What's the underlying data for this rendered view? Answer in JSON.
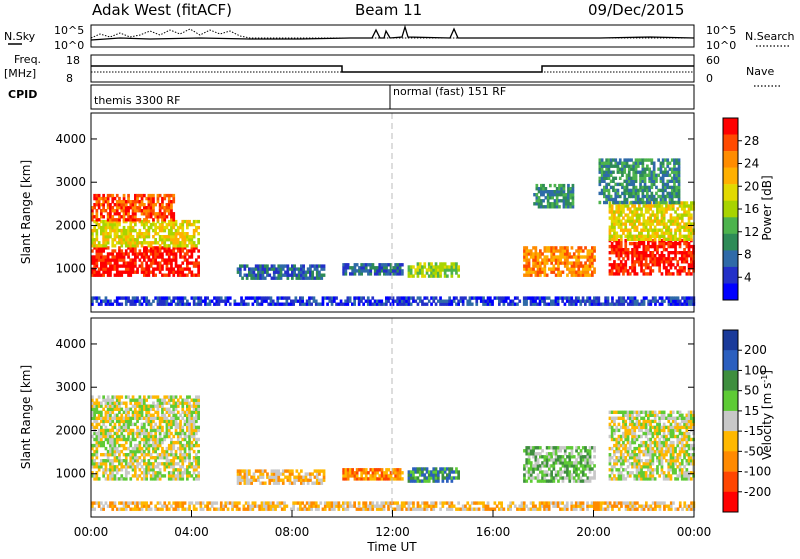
{
  "header": {
    "station": "Adak West (fitACF)",
    "beam": "Beam 11",
    "date": "09/Dec/2015"
  },
  "strip_panels": {
    "nsky": {
      "label": "N.Sky",
      "left_ticks": [
        "10^5",
        "10^0"
      ]
    },
    "nsearch": {
      "label": "N.Search",
      "right_ticks": [
        "10^5",
        "10^0"
      ]
    },
    "freq": {
      "label_line1": "Freq.",
      "label_line2": "[MHz]",
      "left_ticks": [
        "18",
        "8"
      ]
    },
    "nave": {
      "label": "Nave",
      "right_ticks": [
        "60",
        "0"
      ]
    },
    "cpid": {
      "label": "CPID",
      "modes": [
        "themis 3300 RF",
        "normal (fast) 151 RF"
      ]
    }
  },
  "colorbars": {
    "power": {
      "title": "Power [dB]",
      "ticks": [
        "28",
        "24",
        "20",
        "16",
        "12",
        "8",
        "4"
      ],
      "colors": [
        "#ff0000",
        "#ff4a00",
        "#ff8c00",
        "#ffb000",
        "#e2d900",
        "#a8d400",
        "#4db34d",
        "#2e8b57",
        "#2f6aa8",
        "#2330c8",
        "#0000ff"
      ]
    },
    "velocity": {
      "title_main": "Velocity ",
      "title_unit": "[m s",
      "title_sup": "-1",
      "title_end": "]",
      "ticks": [
        "200",
        "100",
        "50",
        "15",
        "-15",
        "-50",
        "-100",
        "-200"
      ],
      "colors": [
        "#1a3a9a",
        "#2b5fbf",
        "#3e8e3e",
        "#5ecb35",
        "#c8c8c8",
        "#ffb800",
        "#ff8a00",
        "#ff4500",
        "#ff0000"
      ]
    }
  },
  "chart_data": [
    {
      "type": "heatmap",
      "name": "power",
      "ylabel": "Slant Range [km]",
      "ylim": [
        0,
        4600
      ],
      "yticks": [
        "4000",
        "3000",
        "2000",
        "1000"
      ],
      "xlim_hours": [
        0,
        24
      ],
      "regions": [
        {
          "t0": 0.0,
          "t1": 4.3,
          "r0": 820,
          "r1": 1500,
          "level": 10
        },
        {
          "t0": 0.0,
          "t1": 4.3,
          "r0": 1500,
          "r1": 2100,
          "level": 6
        },
        {
          "t0": 0.0,
          "t1": 3.3,
          "r0": 2100,
          "r1": 2700,
          "level": 9
        },
        {
          "t0": 5.8,
          "t1": 9.3,
          "r0": 750,
          "r1": 1050,
          "level": 2
        },
        {
          "t0": 10.0,
          "t1": 12.4,
          "r0": 850,
          "r1": 1100,
          "level": 2
        },
        {
          "t0": 12.6,
          "t1": 14.6,
          "r0": 800,
          "r1": 1100,
          "level": 5
        },
        {
          "t0": 17.2,
          "t1": 20.0,
          "r0": 820,
          "r1": 1500,
          "level": 8
        },
        {
          "t0": 17.6,
          "t1": 19.2,
          "r0": 2400,
          "r1": 2900,
          "level": 3
        },
        {
          "t0": 20.6,
          "t1": 24.0,
          "r0": 850,
          "r1": 1650,
          "level": 10
        },
        {
          "t0": 20.6,
          "t1": 24.0,
          "r0": 1650,
          "r1": 2500,
          "level": 6
        },
        {
          "t0": 20.2,
          "t1": 23.4,
          "r0": 2500,
          "r1": 3500,
          "level": 3
        },
        {
          "t0": 0.0,
          "t1": 24.0,
          "r0": 150,
          "r1": 350,
          "level": 1
        }
      ]
    },
    {
      "type": "heatmap",
      "name": "velocity",
      "ylabel": "Slant Range [km]",
      "ylim": [
        0,
        4600
      ],
      "yticks": [
        "4000",
        "3000",
        "2000",
        "1000"
      ],
      "xlim_hours": [
        0,
        24
      ],
      "xticks": [
        "00:00",
        "04:00",
        "08:00",
        "12:00",
        "16:00",
        "20:00",
        "00:00"
      ],
      "xlabel": "Time UT",
      "regions": [
        {
          "t0": 0.0,
          "t1": 4.3,
          "r0": 850,
          "r1": 2800,
          "level": 4
        },
        {
          "t0": 5.8,
          "t1": 9.3,
          "r0": 750,
          "r1": 1050,
          "level": 5
        },
        {
          "t0": 10.0,
          "t1": 12.4,
          "r0": 850,
          "r1": 1100,
          "level": 6
        },
        {
          "t0": 12.6,
          "t1": 14.6,
          "r0": 800,
          "r1": 1100,
          "level": 2
        },
        {
          "t0": 17.2,
          "t1": 20.0,
          "r0": 800,
          "r1": 1600,
          "level": 3
        },
        {
          "t0": 20.6,
          "t1": 24.0,
          "r0": 850,
          "r1": 2400,
          "level": 4
        },
        {
          "t0": 0.0,
          "t1": 24.0,
          "r0": 150,
          "r1": 350,
          "level": 5
        }
      ]
    }
  ]
}
